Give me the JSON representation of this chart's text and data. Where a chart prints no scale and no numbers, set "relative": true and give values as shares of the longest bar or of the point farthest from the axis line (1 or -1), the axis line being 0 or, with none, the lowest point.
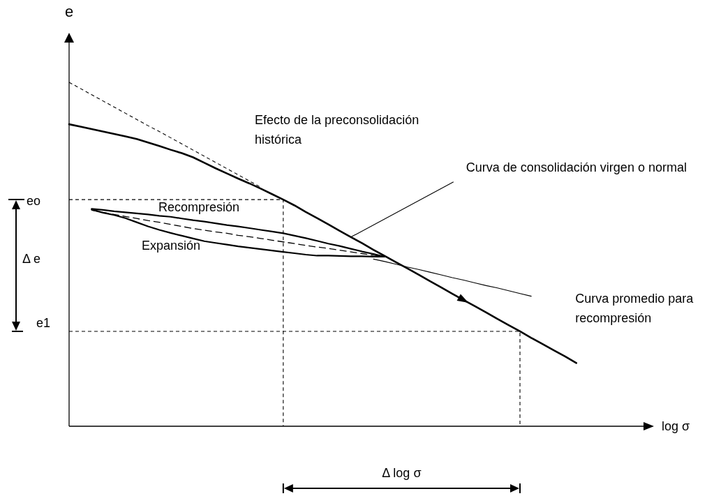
{
  "chart_data": {
    "type": "line",
    "relative": true,
    "xlabel": "log σ",
    "ylabel": "e",
    "categories": [
      null,
      null,
      null,
      null,
      null,
      null,
      null,
      null,
      null,
      null,
      null,
      null,
      null,
      null,
      null,
      null,
      null,
      null,
      null,
      null,
      null,
      null,
      null,
      null,
      null,
      null,
      null,
      null,
      null,
      null,
      null,
      null,
      null,
      null,
      null,
      null,
      null,
      null,
      null,
      null,
      null,
      null,
      null,
      null,
      null,
      null,
      null,
      null,
      null,
      null,
      null,
      null
    ],
    "series": [
      {
        "color": "#000000",
        "values": [
          0.878,
          0.871,
          0.864,
          0.857,
          0.85,
          0.843,
          0.835,
          0.825,
          0.815,
          0.804,
          0.794,
          0.782,
          0.766,
          0.75,
          0.735,
          0.72,
          0.706,
          0.691,
          0.675,
          0.659,
          0.642,
          0.623,
          0.605,
          0.587,
          0.568,
          0.55,
          0.532,
          0.513,
          0.495,
          0.477,
          0.459,
          0.441,
          0.422,
          0.404,
          0.385,
          0.367,
          0.349,
          0.331,
          0.312,
          0.294,
          0.276,
          0.257,
          0.239,
          0.221,
          0.203,
          0.184,
          null,
          null,
          null,
          null,
          null,
          null
        ]
      },
      {
        "color": "#000000",
        "line_style": "dashed",
        "values": [
          1,
          0.982,
          0.964,
          0.946,
          0.928,
          0.91,
          0.892,
          0.874,
          0.857,
          0.839,
          0.821,
          0.803,
          0.785,
          0.767,
          0.749,
          0.731,
          0.713,
          0.695,
          null,
          null,
          null,
          null,
          null,
          null,
          null,
          null,
          null,
          null,
          null,
          null,
          null,
          null,
          null,
          null,
          null,
          null,
          null,
          null,
          null,
          null,
          null,
          null,
          null,
          null,
          null,
          null,
          null,
          null,
          null,
          null,
          null,
          null
        ]
      },
      {
        "color": "#000000",
        "line_style": "dashed",
        "values": [
          null,
          null,
          0.628,
          0.622,
          0.616,
          0.61,
          0.604,
          0.598,
          0.593,
          0.587,
          0.581,
          0.575,
          0.57,
          0.565,
          0.561,
          0.555,
          0.551,
          0.546,
          0.541,
          0.536,
          0.531,
          0.526,
          0.521,
          0.517,
          0.512,
          0.507,
          0.502,
          0.497,
          0.493,
          null,
          null,
          null,
          null,
          null,
          null,
          null,
          null,
          null,
          null,
          null,
          null,
          null,
          null,
          null,
          null,
          null,
          null,
          null,
          null,
          null,
          null,
          null
        ]
      },
      {
        "color": "#000000",
        "values": [
          null,
          null,
          null,
          null,
          null,
          null,
          null,
          null,
          null,
          null,
          null,
          null,
          null,
          null,
          null,
          null,
          null,
          null,
          null,
          null,
          null,
          null,
          null,
          null,
          null,
          null,
          null,
          0.486,
          0.479,
          0.471,
          0.463,
          0.456,
          0.448,
          0.44,
          0.432,
          0.425,
          0.417,
          0.409,
          0.402,
          0.394,
          0.386,
          0.378,
          null,
          null,
          null,
          null,
          null,
          null,
          null,
          null,
          null,
          null
        ]
      },
      {
        "type": "step",
        "color": "#000000",
        "line_style": "dashed",
        "values": [
          0.659,
          0.659,
          0.659,
          0.659,
          0.659,
          0.659,
          0.659,
          0.659,
          0.659,
          0.659,
          0.659,
          0.659,
          0.659,
          0.659,
          0.659,
          0.659,
          0.659,
          0.659,
          0.659,
          0,
          null,
          null,
          null,
          null,
          null,
          null,
          null,
          null,
          null,
          null,
          null,
          null,
          null,
          null,
          null,
          null,
          null,
          null,
          null,
          null,
          null,
          null,
          null,
          null,
          null,
          null,
          null,
          null,
          null,
          null,
          null,
          null
        ]
      },
      {
        "type": "step",
        "color": "#000000",
        "line_style": "dashed",
        "values": [
          0.276,
          0.276,
          0.276,
          0.276,
          0.276,
          0.276,
          0.276,
          0.276,
          0.276,
          0.276,
          0.276,
          0.276,
          0.276,
          0.276,
          0.276,
          0.276,
          0.276,
          0.276,
          0.276,
          0.276,
          0.276,
          0.276,
          0.276,
          0.276,
          0.276,
          0.276,
          0.276,
          0.276,
          0.276,
          0.276,
          0.276,
          0.276,
          0.276,
          0.276,
          0.276,
          0.276,
          0.276,
          0.276,
          0.276,
          0.276,
          0,
          null,
          null,
          null,
          null,
          null,
          null,
          null,
          null,
          null,
          null,
          null
        ]
      }
    ],
    "annotations": [
      "Efecto de la preconsolidación histórica",
      "Curva de consolidación virgen o normal",
      "Recompresión",
      "Expansión",
      "Curva promedio para recompresión",
      "eo",
      "e1",
      "Δ e",
      "Δ log σ"
    ]
  }
}
